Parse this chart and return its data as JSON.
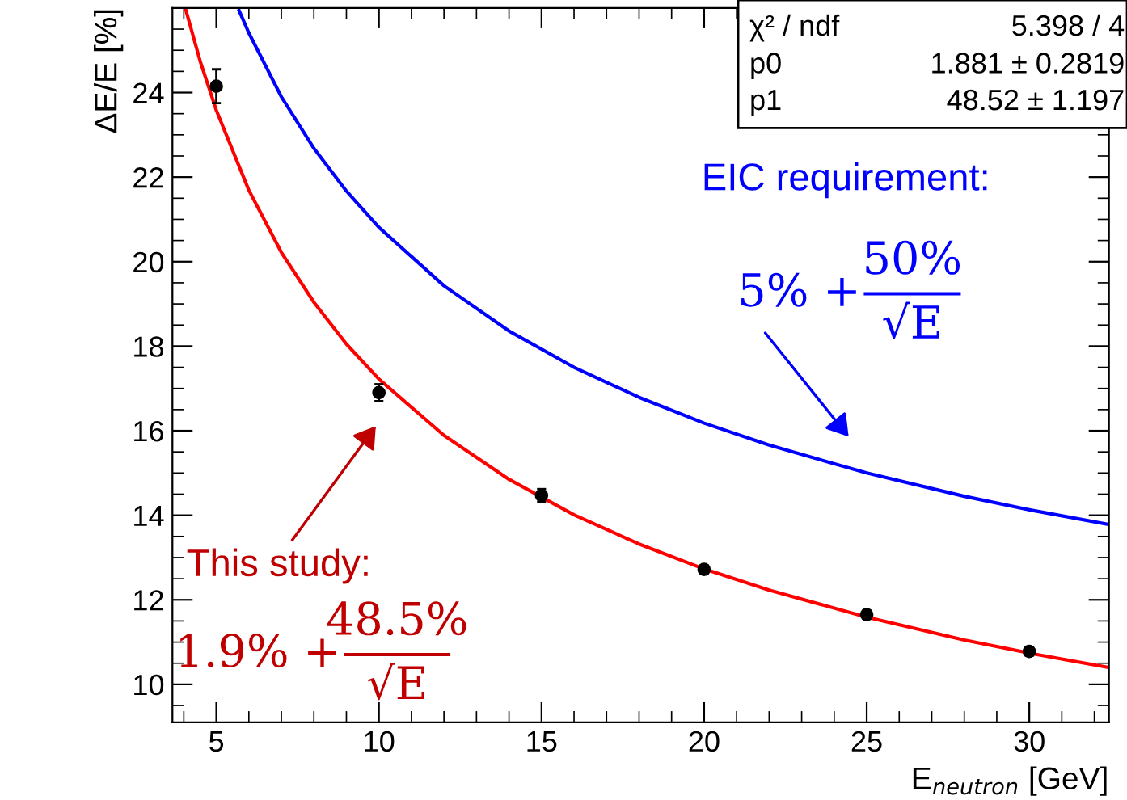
{
  "chart_data": {
    "type": "scatter",
    "xlabel": "E$_{neutron}$ [GeV]",
    "ylabel": "ΔE/E [%]",
    "xlim": [
      3.65,
      32.45
    ],
    "ylim": [
      9.1,
      26.0
    ],
    "xticks": [
      5,
      10,
      15,
      20,
      25,
      30
    ],
    "yticks": [
      10,
      12,
      14,
      16,
      18,
      20,
      22,
      24
    ],
    "grid": false,
    "legend": false,
    "series": [
      {
        "marker": "circle",
        "color": "#000000",
        "x": [
          5,
          10,
          15,
          20,
          25,
          30
        ],
        "values": [
          24.15,
          16.9,
          14.47,
          12.72,
          11.65,
          10.78
        ],
        "errors": [
          0.4,
          0.2,
          0.15,
          0.1,
          0.1,
          0.1
        ]
      },
      {
        "type": "line",
        "color": "#ff0000",
        "x": [
          4.05,
          4.5,
          5,
          6,
          7,
          8,
          9,
          10,
          12,
          14,
          16,
          18,
          20,
          22,
          25,
          28,
          30,
          32.45
        ],
        "values": [
          25.99,
          24.75,
          23.58,
          21.69,
          20.22,
          19.04,
          18.05,
          17.22,
          15.89,
          14.85,
          14.01,
          13.32,
          12.73,
          12.23,
          11.59,
          11.05,
          10.74,
          10.4
        ]
      },
      {
        "type": "line",
        "color": "#0000ff",
        "x": [
          5.7,
          6,
          7,
          8,
          9,
          10,
          12,
          14,
          16,
          18,
          20,
          22,
          25,
          28,
          30,
          32.45
        ],
        "values": [
          25.94,
          25.41,
          23.9,
          22.68,
          21.67,
          20.81,
          19.43,
          18.36,
          17.5,
          16.79,
          16.18,
          15.66,
          15.0,
          14.45,
          14.13,
          13.78
        ]
      }
    ],
    "annotations": [
      "χ² / ndf",
      "5.398 / 4",
      "p0",
      "1.881 ± 0.2819",
      "p1",
      "48.52 ± 1.197",
      "EIC requirement:",
      "5% +",
      "50%",
      "√E",
      "This study:",
      "1.9% +",
      "48.5%",
      "√E"
    ]
  }
}
